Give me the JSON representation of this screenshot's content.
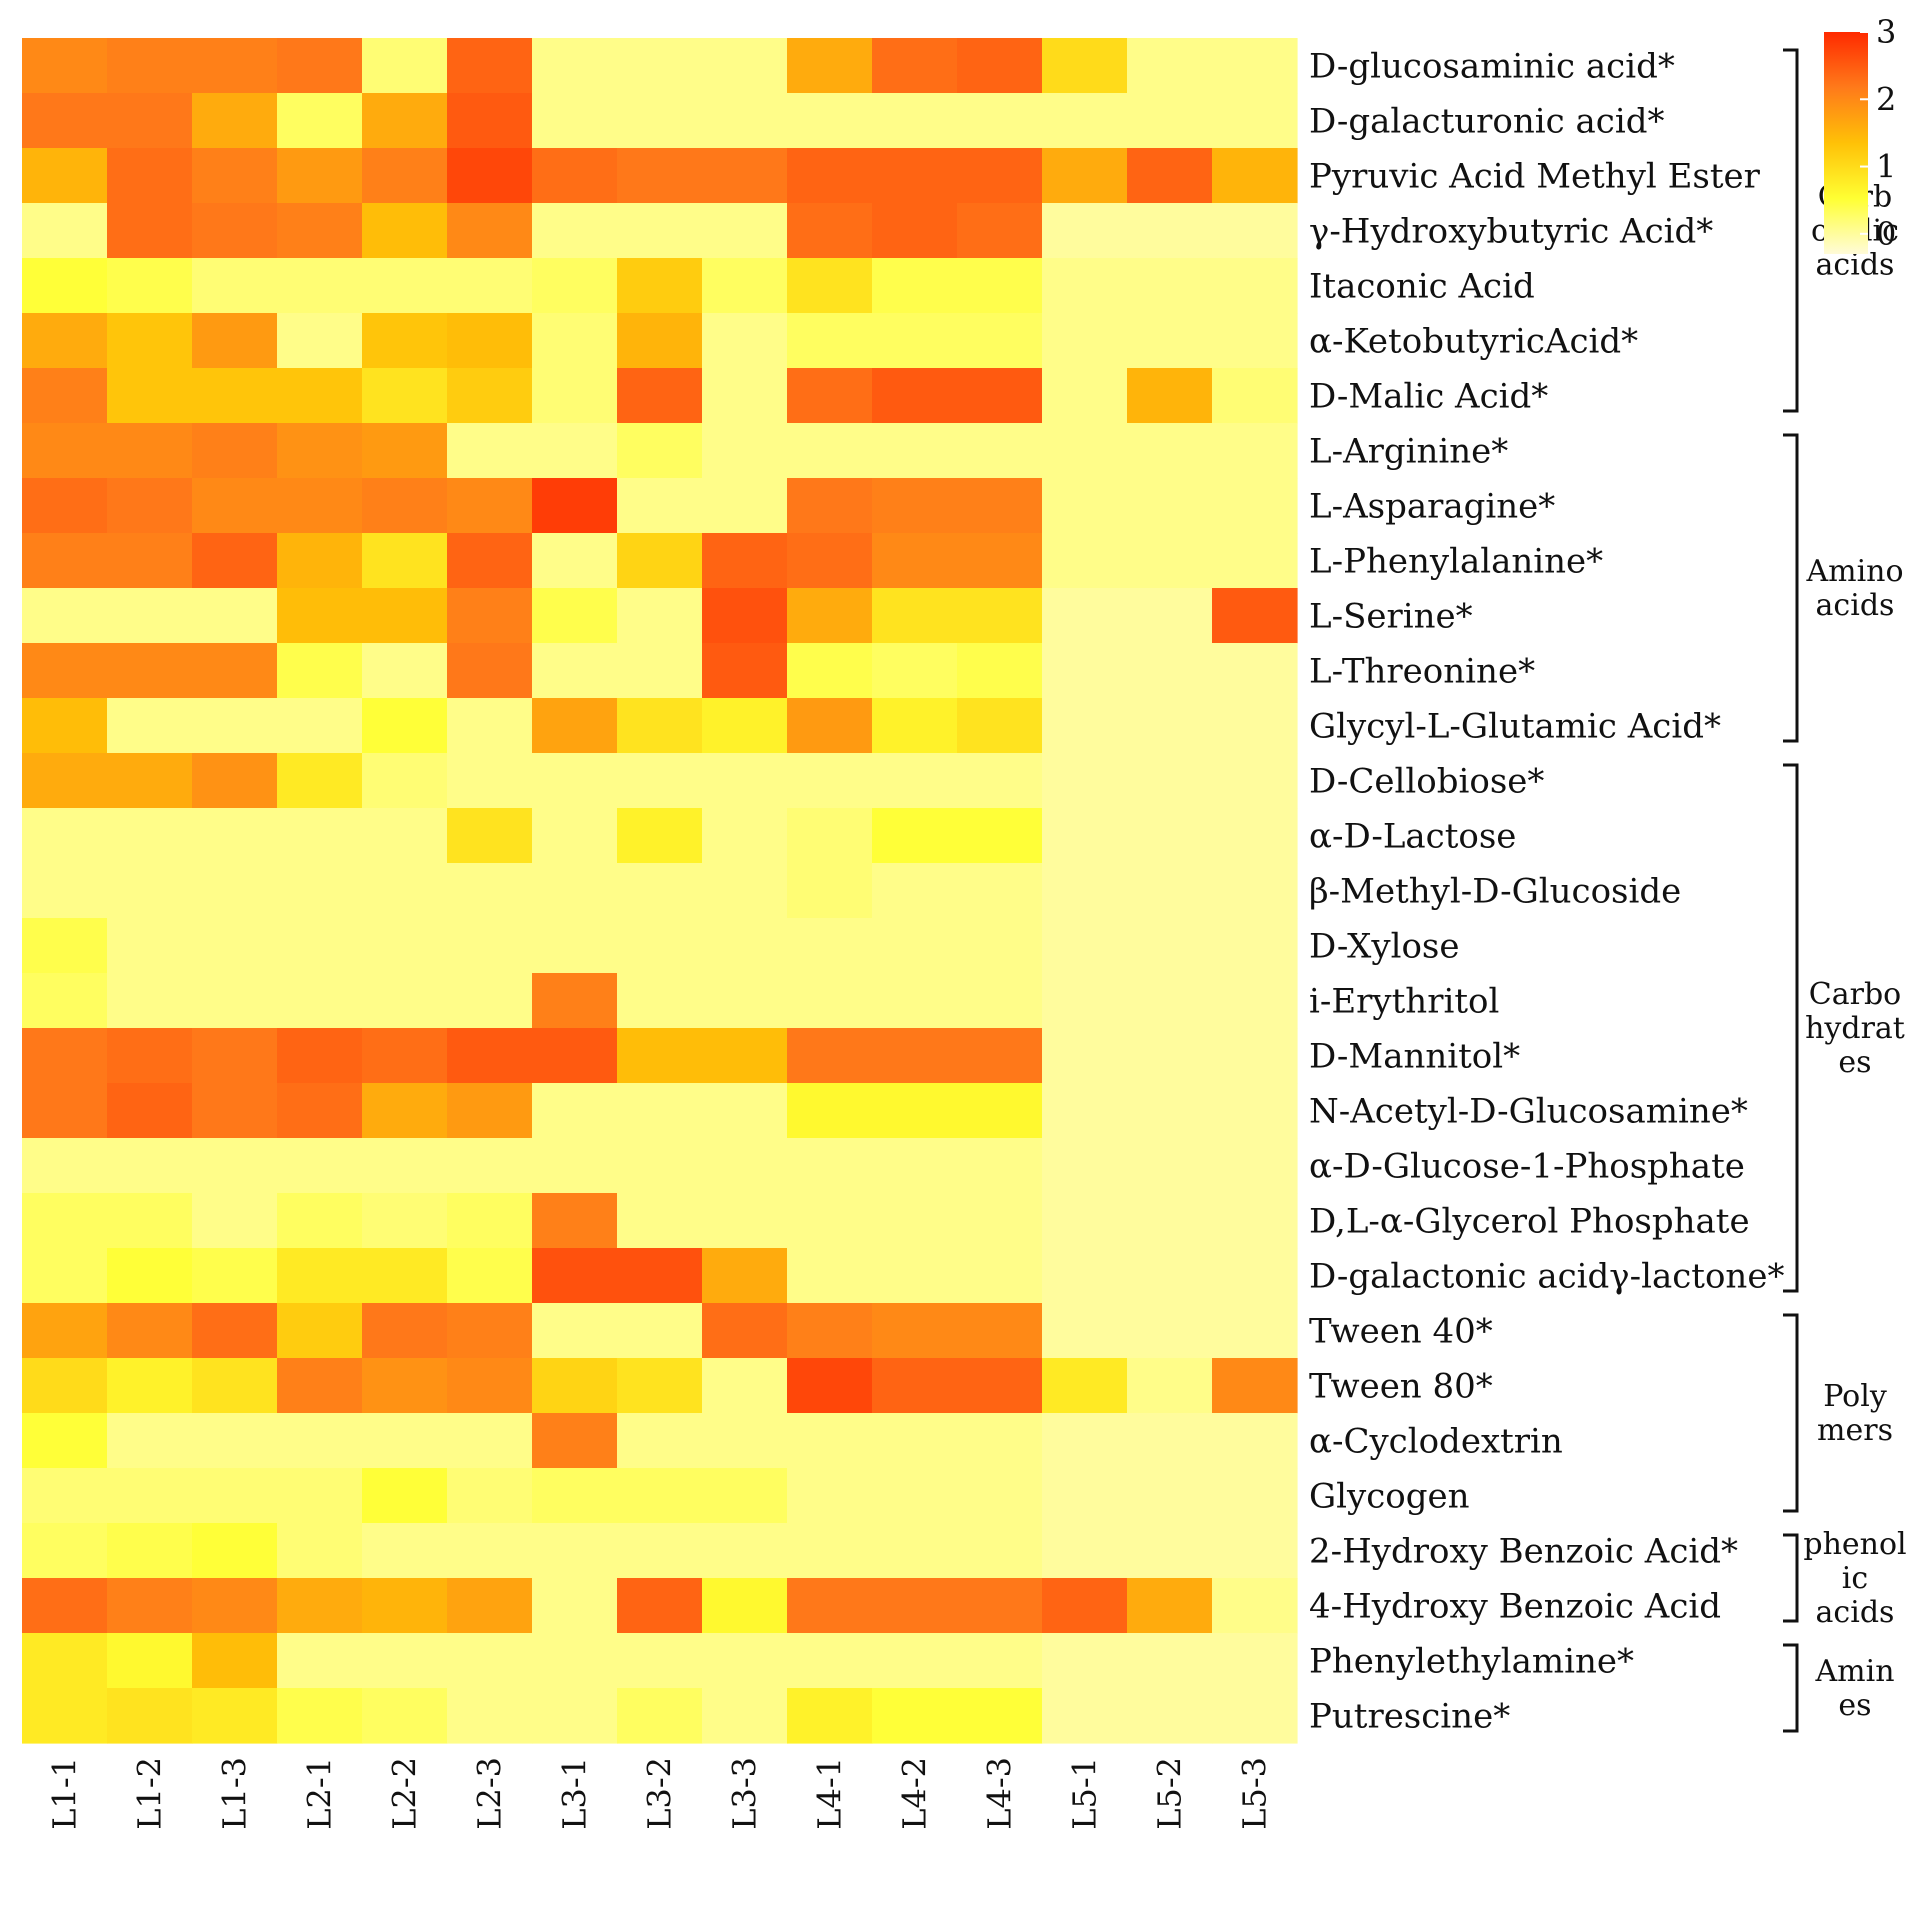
{
  "chart_data": {
    "type": "heatmap",
    "colorscale": [
      "#fffbd9",
      "#ffff33",
      "#ffc107",
      "#ff7a1a",
      "#ff2a00"
    ],
    "colorbar": {
      "min": -0.3,
      "max": 3.0,
      "ticks": [
        0,
        1,
        2,
        3
      ]
    },
    "columns": [
      "L1-1",
      "L1-2",
      "L1-3",
      "L2-1",
      "L2-2",
      "L2-3",
      "L3-1",
      "L3-2",
      "L3-3",
      "L4-1",
      "L4-2",
      "L4-3",
      "L5-1",
      "L5-2",
      "L5-3"
    ],
    "rows": [
      "D-glucosaminic acid*",
      "D-galacturonic acid*",
      "Pyruvic Acid Methyl Ester",
      "γ-Hydroxybutyric Acid*",
      "Itaconic Acid",
      "α-KetobutyricAcid*",
      "D-Malic Acid*",
      "L-Arginine*",
      "L-Asparagine*",
      "L-Phenylalanine*",
      "L-Serine*",
      "L-Threonine*",
      "Glycyl-L-Glutamic Acid*",
      "D-Cellobiose*",
      "α-D-Lactose",
      "β-Methyl-D-Glucoside",
      "D-Xylose",
      "i-Erythritol",
      "D-Mannitol*",
      "N-Acetyl-D-Glucosamine*",
      "α-D-Glucose-1-Phosphate",
      "D,L-α-Glycerol Phosphate",
      "D-galactonic acidγ-lactone*",
      "Tween 40*",
      "Tween 80*",
      "α-Cyclodextrin",
      "Glycogen",
      "2-Hydroxy Benzoic Acid*",
      "4-Hydroxy Benzoic Acid",
      "Phenylethylamine*",
      "Putrescine*"
    ],
    "values": [
      [
        2.0,
        2.1,
        2.1,
        2.2,
        0.2,
        2.4,
        0.1,
        0.1,
        0.1,
        1.6,
        2.3,
        2.4,
        1.0,
        0.1,
        0.1
      ],
      [
        2.2,
        2.2,
        1.6,
        0.3,
        1.6,
        2.5,
        0.1,
        0.1,
        0.1,
        0.1,
        0.1,
        0.1,
        0.1,
        0.1,
        0.1
      ],
      [
        1.5,
        2.3,
        2.1,
        1.8,
        2.1,
        2.7,
        2.3,
        2.2,
        2.2,
        2.4,
        2.4,
        2.4,
        1.6,
        2.4,
        1.5
      ],
      [
        0.1,
        2.3,
        2.2,
        2.1,
        1.4,
        2.0,
        0.1,
        0.1,
        0.1,
        2.3,
        2.4,
        2.3,
        0.0,
        0.0,
        0.0
      ],
      [
        0.5,
        0.4,
        0.2,
        0.2,
        0.2,
        0.2,
        0.3,
        1.2,
        0.3,
        0.9,
        0.4,
        0.4,
        0.1,
        0.1,
        0.1
      ],
      [
        1.6,
        1.3,
        1.8,
        0.1,
        1.3,
        1.4,
        0.2,
        1.5,
        0.1,
        0.3,
        0.3,
        0.3,
        0.1,
        0.1,
        0.1
      ],
      [
        2.1,
        1.3,
        1.3,
        1.3,
        0.9,
        1.2,
        0.2,
        2.4,
        0.1,
        2.3,
        2.5,
        2.5,
        0.1,
        1.5,
        0.2
      ],
      [
        2.0,
        2.0,
        2.1,
        1.9,
        1.8,
        0.1,
        0.1,
        0.3,
        0.1,
        0.1,
        0.1,
        0.1,
        0.1,
        0.1,
        0.1
      ],
      [
        2.3,
        2.2,
        2.0,
        2.0,
        2.1,
        2.0,
        2.8,
        0.1,
        0.1,
        2.2,
        2.1,
        2.1,
        0.1,
        0.1,
        0.1
      ],
      [
        2.1,
        2.1,
        2.4,
        1.5,
        0.9,
        2.4,
        0.1,
        1.1,
        2.4,
        2.3,
        2.0,
        2.0,
        0.1,
        0.1,
        0.1
      ],
      [
        0.1,
        0.1,
        0.1,
        1.4,
        1.4,
        2.1,
        0.4,
        0.1,
        2.6,
        1.6,
        0.9,
        0.9,
        0.0,
        0.0,
        2.5
      ],
      [
        2.0,
        2.0,
        2.0,
        0.4,
        0.1,
        2.2,
        0.1,
        0.1,
        2.5,
        0.4,
        0.3,
        0.4,
        0.0,
        0.0,
        0.0
      ],
      [
        1.4,
        0.1,
        0.1,
        0.1,
        0.5,
        0.1,
        1.7,
        0.9,
        0.7,
        1.8,
        0.7,
        0.9,
        0.0,
        0.0,
        0.0
      ],
      [
        1.6,
        1.6,
        1.9,
        0.8,
        0.2,
        0.1,
        0.1,
        0.1,
        0.1,
        0.1,
        0.1,
        0.1,
        0.0,
        0.0,
        0.0
      ],
      [
        0.1,
        0.1,
        0.1,
        0.1,
        0.1,
        0.9,
        0.1,
        0.7,
        0.1,
        0.2,
        0.5,
        0.5,
        0.0,
        0.0,
        0.0
      ],
      [
        0.1,
        0.1,
        0.1,
        0.1,
        0.1,
        0.1,
        0.1,
        0.1,
        0.1,
        0.2,
        0.1,
        0.1,
        0.0,
        0.0,
        0.0
      ],
      [
        0.4,
        0.1,
        0.1,
        0.1,
        0.1,
        0.1,
        0.1,
        0.1,
        0.1,
        0.1,
        0.1,
        0.1,
        0.0,
        0.0,
        0.0
      ],
      [
        0.3,
        0.1,
        0.1,
        0.1,
        0.1,
        0.1,
        2.1,
        0.1,
        0.1,
        0.1,
        0.1,
        0.1,
        0.0,
        0.0,
        0.0
      ],
      [
        2.2,
        2.3,
        2.2,
        2.4,
        2.3,
        2.5,
        2.5,
        1.4,
        1.4,
        2.2,
        2.2,
        2.2,
        0.0,
        0.0,
        0.0
      ],
      [
        2.2,
        2.4,
        2.2,
        2.3,
        1.6,
        1.8,
        0.1,
        0.1,
        0.1,
        0.6,
        0.6,
        0.6,
        0.0,
        0.0,
        0.0
      ],
      [
        0.1,
        0.1,
        0.1,
        0.1,
        0.1,
        0.1,
        0.1,
        0.1,
        0.1,
        0.1,
        0.1,
        0.1,
        0.0,
        0.0,
        0.0
      ],
      [
        0.3,
        0.3,
        0.1,
        0.3,
        0.2,
        0.3,
        2.1,
        0.1,
        0.1,
        0.1,
        0.1,
        0.1,
        0.0,
        0.0,
        0.0
      ],
      [
        0.3,
        0.5,
        0.4,
        0.8,
        0.8,
        0.4,
        2.6,
        2.6,
        1.6,
        0.1,
        0.1,
        0.1,
        0.0,
        0.0,
        0.0
      ],
      [
        1.7,
        2.0,
        2.3,
        1.2,
        2.2,
        2.1,
        0.1,
        0.1,
        2.3,
        2.1,
        2.0,
        2.0,
        0.0,
        0.0,
        0.0
      ],
      [
        1.0,
        0.7,
        0.9,
        2.1,
        1.9,
        2.0,
        1.1,
        0.9,
        0.1,
        2.7,
        2.4,
        2.4,
        0.8,
        0.1,
        2.0
      ],
      [
        0.5,
        0.1,
        0.1,
        0.1,
        0.1,
        0.1,
        2.1,
        0.1,
        0.1,
        0.1,
        0.1,
        0.1,
        0.0,
        0.0,
        0.0
      ],
      [
        0.2,
        0.2,
        0.2,
        0.2,
        0.5,
        0.2,
        0.3,
        0.3,
        0.3,
        0.1,
        0.1,
        0.1,
        0.0,
        0.0,
        0.0
      ],
      [
        0.3,
        0.4,
        0.5,
        0.2,
        0.1,
        0.1,
        0.1,
        0.1,
        0.1,
        0.1,
        0.1,
        0.1,
        0.0,
        0.0,
        0.0
      ],
      [
        2.3,
        2.1,
        2.0,
        1.6,
        1.5,
        1.7,
        0.1,
        2.4,
        0.6,
        2.2,
        2.2,
        2.2,
        2.4,
        1.6,
        0.1
      ],
      [
        0.8,
        0.6,
        1.4,
        0.1,
        0.1,
        0.1,
        0.1,
        0.1,
        0.1,
        0.1,
        0.1,
        0.1,
        0.0,
        0.0,
        0.0
      ],
      [
        0.8,
        0.9,
        0.8,
        0.4,
        0.3,
        0.1,
        0.1,
        0.3,
        0.1,
        0.7,
        0.5,
        0.5,
        0.0,
        0.0,
        0.0
      ]
    ],
    "groups": [
      {
        "label_lines": [
          "Carb",
          "oxylic",
          "acids"
        ],
        "start_row": 0,
        "end_row": 6
      },
      {
        "label_lines": [
          "Amino",
          "acids"
        ],
        "start_row": 7,
        "end_row": 12
      },
      {
        "label_lines": [
          "Carbo",
          "hydrat",
          "es"
        ],
        "start_row": 13,
        "end_row": 22
      },
      {
        "label_lines": [
          "Poly",
          "mers"
        ],
        "start_row": 23,
        "end_row": 26
      },
      {
        "label_lines": [
          "phenol",
          "ic",
          "acids"
        ],
        "start_row": 27,
        "end_row": 28
      },
      {
        "label_lines": [
          "Amin",
          "es"
        ],
        "start_row": 29,
        "end_row": 30
      }
    ]
  }
}
